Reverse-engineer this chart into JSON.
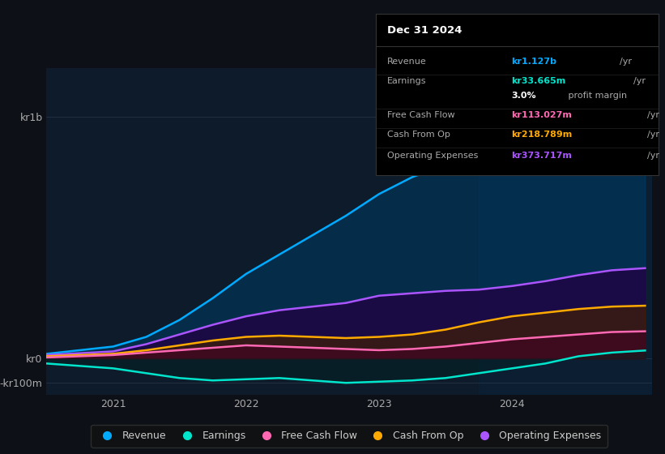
{
  "background_color": "#0d1117",
  "plot_bg_color": "#0d1b2a",
  "title_box": {
    "title": "Dec 31 2024",
    "rows": [
      {
        "label": "Revenue",
        "value": "kr1.127b",
        "unit": "/yr",
        "value_color": "#00aaff"
      },
      {
        "label": "Earnings",
        "value": "kr33.665m",
        "unit": "/yr",
        "value_color": "#00e5cc"
      },
      {
        "label": "",
        "value": "3.0%",
        "unit": " profit margin",
        "value_color": "#ffffff"
      },
      {
        "label": "Free Cash Flow",
        "value": "kr113.027m",
        "unit": "/yr",
        "value_color": "#ff69b4"
      },
      {
        "label": "Cash From Op",
        "value": "kr218.789m",
        "unit": "/yr",
        "value_color": "#ffaa00"
      },
      {
        "label": "Operating Expenses",
        "value": "kr373.717m",
        "unit": "/yr",
        "value_color": "#aa55ff"
      }
    ],
    "box_bg": "#000000",
    "box_border": "#333333",
    "label_color": "#aaaaaa",
    "title_color": "#ffffff"
  },
  "yticks_labels": [
    "kr1b",
    "kr0",
    "-kr100m"
  ],
  "yticks_values": [
    1000000000,
    0,
    -100000000
  ],
  "xticks_labels": [
    "2021",
    "2022",
    "2023",
    "2024"
  ],
  "ylim": [
    -150000000,
    1200000000
  ],
  "xlim": [
    2020.5,
    2025.05
  ],
  "series": {
    "Revenue": {
      "color": "#00aaff",
      "fill_color": "#003d66",
      "fill_alpha": 0.55,
      "x": [
        2020.5,
        2021.0,
        2021.25,
        2021.5,
        2021.75,
        2022.0,
        2022.25,
        2022.5,
        2022.75,
        2023.0,
        2023.25,
        2023.5,
        2023.75,
        2024.0,
        2024.25,
        2024.5,
        2024.75,
        2025.0
      ],
      "y": [
        20000000,
        50000000,
        90000000,
        160000000,
        250000000,
        350000000,
        430000000,
        510000000,
        590000000,
        680000000,
        750000000,
        800000000,
        850000000,
        900000000,
        950000000,
        1000000000,
        1060000000,
        1127000000
      ]
    },
    "Operating_Expenses": {
      "color": "#aa55ff",
      "fill_color": "#220044",
      "fill_alpha": 0.75,
      "x": [
        2020.5,
        2021.0,
        2021.25,
        2021.5,
        2021.75,
        2022.0,
        2022.25,
        2022.5,
        2022.75,
        2023.0,
        2023.25,
        2023.5,
        2023.75,
        2024.0,
        2024.25,
        2024.5,
        2024.75,
        2025.0
      ],
      "y": [
        15000000,
        30000000,
        60000000,
        100000000,
        140000000,
        175000000,
        200000000,
        215000000,
        230000000,
        260000000,
        270000000,
        280000000,
        285000000,
        300000000,
        320000000,
        345000000,
        365000000,
        373717000
      ]
    },
    "Cash_From_Op": {
      "color": "#ffaa00",
      "fill_color": "#442200",
      "fill_alpha": 0.65,
      "x": [
        2020.5,
        2021.0,
        2021.25,
        2021.5,
        2021.75,
        2022.0,
        2022.25,
        2022.5,
        2022.75,
        2023.0,
        2023.25,
        2023.5,
        2023.75,
        2024.0,
        2024.25,
        2024.5,
        2024.75,
        2025.0
      ],
      "y": [
        10000000,
        20000000,
        35000000,
        55000000,
        75000000,
        90000000,
        95000000,
        90000000,
        85000000,
        90000000,
        100000000,
        120000000,
        150000000,
        175000000,
        190000000,
        205000000,
        215000000,
        218789000
      ]
    },
    "Free_Cash_Flow": {
      "color": "#ff69b4",
      "fill_color": "#440022",
      "fill_alpha": 0.55,
      "x": [
        2020.5,
        2021.0,
        2021.25,
        2021.5,
        2021.75,
        2022.0,
        2022.25,
        2022.5,
        2022.75,
        2023.0,
        2023.25,
        2023.5,
        2023.75,
        2024.0,
        2024.25,
        2024.5,
        2024.75,
        2025.0
      ],
      "y": [
        5000000,
        15000000,
        25000000,
        35000000,
        45000000,
        55000000,
        50000000,
        45000000,
        40000000,
        35000000,
        40000000,
        50000000,
        65000000,
        80000000,
        90000000,
        100000000,
        110000000,
        113027000
      ]
    },
    "Earnings": {
      "color": "#00e5cc",
      "fill_color": "#002222",
      "fill_alpha": 0.45,
      "x": [
        2020.5,
        2021.0,
        2021.25,
        2021.5,
        2021.75,
        2022.0,
        2022.25,
        2022.5,
        2022.75,
        2023.0,
        2023.25,
        2023.5,
        2023.75,
        2024.0,
        2024.25,
        2024.5,
        2024.75,
        2025.0
      ],
      "y": [
        -20000000,
        -40000000,
        -60000000,
        -80000000,
        -90000000,
        -85000000,
        -80000000,
        -90000000,
        -100000000,
        -95000000,
        -90000000,
        -80000000,
        -60000000,
        -40000000,
        -20000000,
        10000000,
        25000000,
        33665000
      ]
    }
  },
  "legend": [
    {
      "label": "Revenue",
      "color": "#00aaff"
    },
    {
      "label": "Earnings",
      "color": "#00e5cc"
    },
    {
      "label": "Free Cash Flow",
      "color": "#ff69b4"
    },
    {
      "label": "Cash From Op",
      "color": "#ffaa00"
    },
    {
      "label": "Operating Expenses",
      "color": "#aa55ff"
    }
  ],
  "highlight_span": [
    2023.75,
    2025.1
  ],
  "highlight_color": "#003366",
  "highlight_alpha": 0.15
}
